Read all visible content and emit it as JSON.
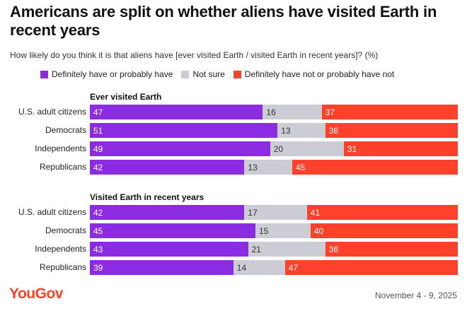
{
  "title": "Americans are split on whether aliens have visited Earth in recent years",
  "subtitle": "How likely do you think it is that aliens have [ever visited Earth / visited Earth in recent years]? (%)",
  "brand": "YouGov",
  "date": "November 4 - 9, 2025",
  "colors": {
    "yes": "#8B2BE2",
    "unsure": "#CCCCD4",
    "no": "#FF412C",
    "brand": "#FF412C"
  },
  "chart_data": {
    "type": "bar",
    "orientation": "horizontal-stacked-100",
    "title": "Americans are split on whether aliens have visited Earth in recent years",
    "subtitle": "How likely do you think it is that aliens have [ever visited Earth / visited Earth in recent years]? (%)",
    "legend": [
      "Definitely have or probably have",
      "Not sure",
      "Definitely have not or probably have not"
    ],
    "legend_position": "top",
    "xlim": [
      0,
      100
    ],
    "groups": [
      {
        "title": "Ever visited Earth",
        "categories": [
          "U.S. adult citizens",
          "Democrats",
          "Independents",
          "Republicans"
        ],
        "series": [
          {
            "name": "Definitely have or probably have",
            "values": [
              47,
              51,
              49,
              42
            ]
          },
          {
            "name": "Not sure",
            "values": [
              16,
              13,
              20,
              13
            ]
          },
          {
            "name": "Definitely have not or probably have not",
            "values": [
              37,
              36,
              31,
              45
            ]
          }
        ]
      },
      {
        "title": "Visited Earth in recent years",
        "categories": [
          "U.S. adult citizens",
          "Democrats",
          "Independents",
          "Republicans"
        ],
        "series": [
          {
            "name": "Definitely have or probably have",
            "values": [
              42,
              45,
              43,
              39
            ]
          },
          {
            "name": "Not sure",
            "values": [
              17,
              15,
              21,
              14
            ]
          },
          {
            "name": "Definitely have not or probably have not",
            "values": [
              41,
              40,
              36,
              47
            ]
          }
        ]
      }
    ]
  }
}
